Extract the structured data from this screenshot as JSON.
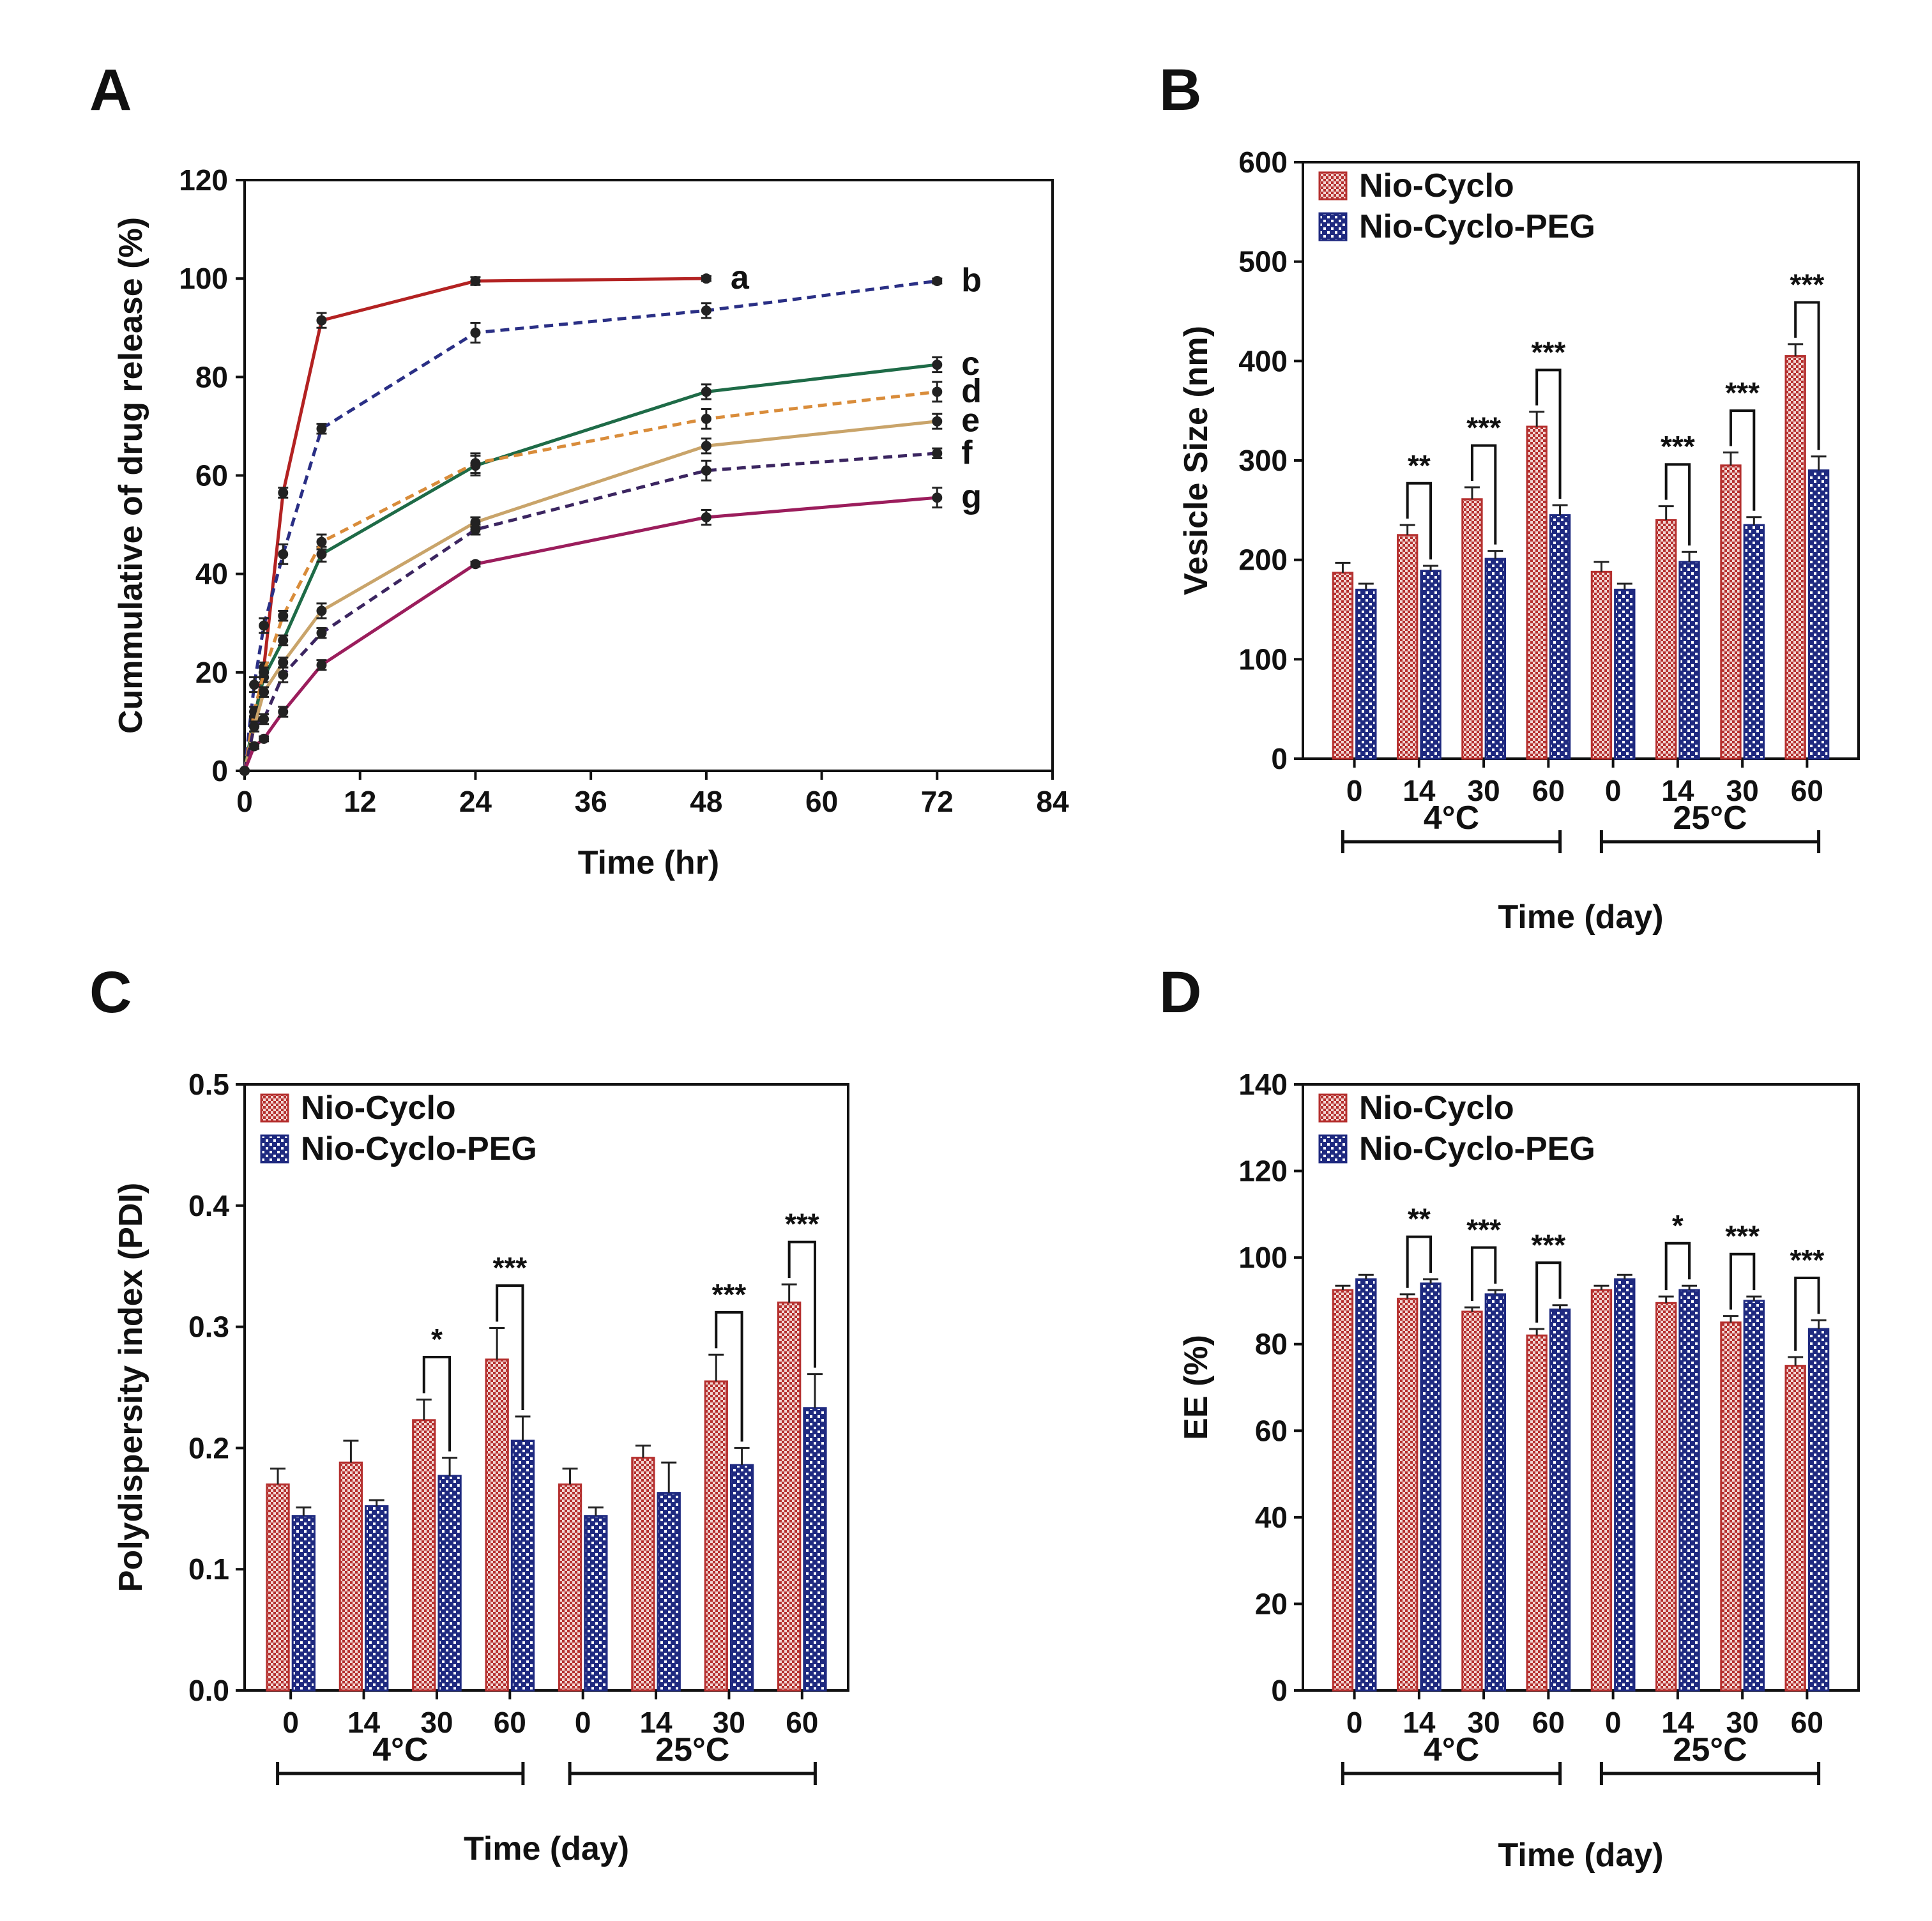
{
  "colors": {
    "nio_cyclo": "#b5302f",
    "nio_cyclo_peg": "#1f2a80",
    "series_a": "#b32222",
    "series_b": "#2a2f85",
    "series_c": "#1e6b47",
    "series_d": "#d98c3a",
    "series_e": "#c9a46a",
    "series_f": "#3b2560",
    "series_g": "#9b1d5c",
    "axis": "#111111"
  },
  "chart_data": [
    {
      "panel": "A",
      "type": "line",
      "title": "",
      "xlabel": "Time (hr)",
      "ylabel": "Cummulative of drug release (%)",
      "xlim": [
        0,
        84
      ],
      "ylim": [
        0,
        120
      ],
      "xticks": [
        0,
        12,
        24,
        36,
        48,
        60,
        72,
        84
      ],
      "yticks": [
        0,
        20,
        40,
        60,
        80,
        100,
        120
      ],
      "grid": false,
      "series": [
        {
          "name": "a",
          "dashed": false,
          "color": "#b32222",
          "x": [
            0,
            1,
            2,
            4,
            8,
            24,
            48
          ],
          "y": [
            0,
            10,
            21,
            56.5,
            91.5,
            99.5,
            100
          ],
          "err": [
            0,
            1,
            1,
            1,
            1.5,
            0.8,
            0.5
          ]
        },
        {
          "name": "b",
          "dashed": true,
          "color": "#2a2f85",
          "x": [
            0,
            1,
            2,
            4,
            8,
            24,
            48,
            72
          ],
          "y": [
            0,
            17.5,
            29.5,
            44,
            69.5,
            89,
            93.5,
            99.5
          ],
          "err": [
            0,
            1.5,
            1.5,
            2,
            1,
            2,
            1.5,
            0.5
          ]
        },
        {
          "name": "c",
          "dashed": false,
          "color": "#1e6b47",
          "x": [
            0,
            1,
            2,
            4,
            8,
            24,
            48,
            72
          ],
          "y": [
            0,
            11,
            19,
            26.5,
            44,
            62,
            77,
            82.5
          ],
          "err": [
            0,
            1,
            1,
            1,
            1.5,
            2,
            1.5,
            1.5
          ]
        },
        {
          "name": "d",
          "dashed": true,
          "color": "#d98c3a",
          "x": [
            0,
            1,
            2,
            4,
            8,
            24,
            48,
            72
          ],
          "y": [
            0,
            12,
            20,
            31.5,
            46.5,
            62.5,
            71.5,
            77
          ],
          "err": [
            0,
            1,
            1,
            1,
            1.5,
            2,
            2,
            2
          ]
        },
        {
          "name": "e",
          "dashed": false,
          "color": "#c9a46a",
          "x": [
            0,
            1,
            2,
            4,
            8,
            24,
            48,
            72
          ],
          "y": [
            0,
            9,
            16,
            22,
            32.5,
            50.5,
            66,
            71
          ],
          "err": [
            0,
            1,
            1,
            1,
            1.5,
            1,
            1.5,
            1.5
          ]
        },
        {
          "name": "f",
          "dashed": true,
          "color": "#3b2560",
          "x": [
            0,
            1,
            2,
            4,
            8,
            24,
            48,
            72
          ],
          "y": [
            0,
            9,
            10.5,
            19.5,
            28,
            49,
            61,
            64.5
          ],
          "err": [
            0,
            1,
            1,
            1.5,
            1,
            1,
            2,
            1
          ]
        },
        {
          "name": "g",
          "dashed": false,
          "color": "#9b1d5c",
          "x": [
            0,
            1,
            2,
            4,
            8,
            24,
            48,
            72
          ],
          "y": [
            0,
            5,
            6.5,
            12,
            21.5,
            42,
            51.5,
            55.5
          ],
          "err": [
            0,
            0.5,
            0.5,
            1,
            1,
            0.5,
            1.5,
            2
          ]
        }
      ]
    },
    {
      "panel": "B",
      "type": "bar",
      "xlabel": "Time (day)",
      "ylabel": "Vesicle Size (nm)",
      "ylim": [
        0,
        600
      ],
      "yticks": [
        0,
        100,
        200,
        300,
        400,
        500,
        600
      ],
      "grid": false,
      "legend_position": "top-left",
      "categories": [
        "0",
        "14",
        "30",
        "60",
        "0",
        "14",
        "30",
        "60"
      ],
      "groups": [
        {
          "label": "4°C",
          "from": 0,
          "to": 3
        },
        {
          "label": "25°C",
          "from": 4,
          "to": 7
        }
      ],
      "series": [
        {
          "name": "Nio-Cyclo",
          "values": [
            187,
            225,
            261,
            334,
            188,
            240,
            295,
            405
          ],
          "err": [
            10,
            10,
            12,
            15,
            10,
            14,
            13,
            12
          ]
        },
        {
          "name": "Nio-Cyclo-PEG",
          "values": [
            170,
            189,
            201,
            245,
            170,
            198,
            235,
            290
          ],
          "err": [
            6,
            5,
            8,
            10,
            6,
            10,
            8,
            14
          ]
        }
      ],
      "significance": [
        {
          "index": 1,
          "label": "**"
        },
        {
          "index": 2,
          "label": "***"
        },
        {
          "index": 3,
          "label": "***"
        },
        {
          "index": 5,
          "label": "***"
        },
        {
          "index": 6,
          "label": "***"
        },
        {
          "index": 7,
          "label": "***"
        }
      ]
    },
    {
      "panel": "C",
      "type": "bar",
      "xlabel": "Time (day)",
      "ylabel": "Polydispersity index (PDI)",
      "ylim": [
        0,
        0.5
      ],
      "yticks": [
        0.0,
        0.1,
        0.2,
        0.3,
        0.4,
        0.5
      ],
      "ytick_labels": [
        "0.0",
        "0.1",
        "0.2",
        "0.3",
        "0.4",
        "0.5"
      ],
      "grid": false,
      "legend_position": "top-left",
      "categories": [
        "0",
        "14",
        "30",
        "60",
        "0",
        "14",
        "30",
        "60"
      ],
      "groups": [
        {
          "label": "4°C",
          "from": 0,
          "to": 3
        },
        {
          "label": "25°C",
          "from": 4,
          "to": 7
        }
      ],
      "series": [
        {
          "name": "Nio-Cyclo",
          "values": [
            0.17,
            0.188,
            0.223,
            0.273,
            0.17,
            0.192,
            0.255,
            0.32
          ],
          "err": [
            0.013,
            0.018,
            0.017,
            0.026,
            0.013,
            0.01,
            0.022,
            0.015
          ]
        },
        {
          "name": "Nio-Cyclo-PEG",
          "values": [
            0.144,
            0.152,
            0.177,
            0.206,
            0.144,
            0.163,
            0.186,
            0.233
          ],
          "err": [
            0.007,
            0.005,
            0.015,
            0.02,
            0.007,
            0.025,
            0.014,
            0.028
          ]
        }
      ],
      "significance": [
        {
          "index": 2,
          "label": "*"
        },
        {
          "index": 3,
          "label": "***"
        },
        {
          "index": 6,
          "label": "***"
        },
        {
          "index": 7,
          "label": "***"
        }
      ]
    },
    {
      "panel": "D",
      "type": "bar",
      "xlabel": "Time (day)",
      "ylabel": "EE (%)",
      "ylim": [
        0,
        140
      ],
      "yticks": [
        0,
        20,
        40,
        60,
        80,
        100,
        120,
        140
      ],
      "grid": false,
      "legend_position": "top-left",
      "categories": [
        "0",
        "14",
        "30",
        "60",
        "0",
        "14",
        "30",
        "60"
      ],
      "groups": [
        {
          "label": "4°C",
          "from": 0,
          "to": 3
        },
        {
          "label": "25°C",
          "from": 4,
          "to": 7
        }
      ],
      "series": [
        {
          "name": "Nio-Cyclo",
          "values": [
            92.5,
            90.5,
            87.5,
            82,
            92.5,
            89.5,
            85,
            75
          ],
          "err": [
            1,
            1,
            1,
            1.5,
            1,
            1.5,
            1.5,
            2
          ]
        },
        {
          "name": "Nio-Cyclo-PEG",
          "values": [
            95,
            94,
            91.5,
            88,
            95,
            92.5,
            90,
            83.5
          ],
          "err": [
            1,
            1,
            1,
            1,
            1,
            1,
            1,
            2
          ]
        }
      ],
      "significance": [
        {
          "index": 1,
          "label": "**"
        },
        {
          "index": 2,
          "label": "***"
        },
        {
          "index": 3,
          "label": "***"
        },
        {
          "index": 5,
          "label": "*"
        },
        {
          "index": 6,
          "label": "***"
        },
        {
          "index": 7,
          "label": "***"
        }
      ]
    }
  ]
}
